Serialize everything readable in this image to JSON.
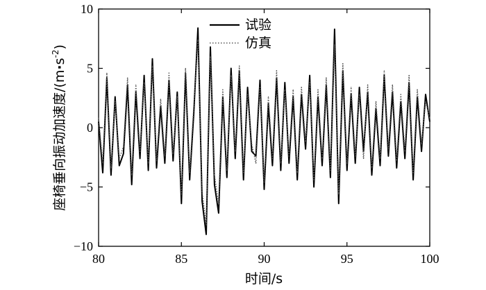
{
  "chart_data": {
    "type": "line",
    "xlabel": "时间/s",
    "ylabel_main": "座椅垂向振动加速度/(m",
    "ylabel_dot": "·",
    "ylabel_s": "s",
    "ylabel_exp": "-2",
    "ylabel_close": ")",
    "xlim": [
      80,
      100
    ],
    "ylim": [
      -10,
      10
    ],
    "xticks": [
      "80",
      "85",
      "90",
      "95",
      "100"
    ],
    "yticks": [
      "10",
      "5",
      "0",
      "-5",
      "-10"
    ],
    "grid": false,
    "legend_position": "top-center",
    "x": [
      80.0,
      80.25,
      80.5,
      80.75,
      81.0,
      81.25,
      81.5,
      81.75,
      82.0,
      82.25,
      82.5,
      82.75,
      83.0,
      83.25,
      83.5,
      83.75,
      84.0,
      84.25,
      84.5,
      84.75,
      85.0,
      85.25,
      85.5,
      85.75,
      86.0,
      86.25,
      86.5,
      86.75,
      87.0,
      87.25,
      87.5,
      87.75,
      88.0,
      88.25,
      88.5,
      88.75,
      89.0,
      89.25,
      89.5,
      89.75,
      90.0,
      90.25,
      90.5,
      90.75,
      91.0,
      91.25,
      91.5,
      91.75,
      92.0,
      92.25,
      92.5,
      92.75,
      93.0,
      93.25,
      93.5,
      93.75,
      94.0,
      94.25,
      94.5,
      94.75,
      95.0,
      95.25,
      95.5,
      95.75,
      96.0,
      96.25,
      96.5,
      96.75,
      97.0,
      97.25,
      97.5,
      97.75,
      98.0,
      98.25,
      98.5,
      98.75,
      99.0,
      99.25,
      99.5,
      99.75,
      100.0
    ],
    "series": [
      {
        "name": "试验",
        "style": "solid",
        "color": "#000000",
        "values": [
          0.5,
          -3.8,
          4.2,
          -4.0,
          2.6,
          -3.2,
          -2.2,
          3.6,
          -4.8,
          3.0,
          -2.6,
          4.4,
          -3.6,
          5.8,
          -3.4,
          1.8,
          -3.0,
          4.0,
          -2.8,
          3.0,
          -6.4,
          4.6,
          -4.4,
          1.2,
          8.4,
          -6.2,
          -9.0,
          6.8,
          -4.8,
          -7.2,
          2.6,
          -4.2,
          5.0,
          -2.6,
          4.8,
          -4.4,
          3.4,
          -2.0,
          -2.4,
          4.0,
          -5.2,
          2.0,
          -3.2,
          4.2,
          -3.6,
          3.8,
          -3.0,
          2.6,
          -4.4,
          2.8,
          -1.8,
          4.4,
          -5.0,
          2.6,
          -3.2,
          3.6,
          -4.2,
          8.3,
          -6.4,
          4.8,
          -3.6,
          2.8,
          -3.0,
          3.4,
          -2.0,
          3.0,
          -4.0,
          1.6,
          -3.2,
          4.4,
          -2.4,
          3.0,
          -3.4,
          2.2,
          -2.6,
          3.8,
          -4.4,
          2.6,
          -2.0,
          2.8,
          0.5
        ]
      },
      {
        "name": "仿真",
        "style": "dotted",
        "color": "#555555",
        "values": [
          0.8,
          -3.0,
          4.6,
          -3.4,
          2.2,
          -2.6,
          -1.6,
          4.2,
          -4.0,
          3.6,
          -2.0,
          3.8,
          -3.0,
          5.2,
          -2.8,
          2.4,
          -2.4,
          4.6,
          -2.2,
          2.6,
          -5.6,
          5.0,
          -3.8,
          1.8,
          7.4,
          -5.4,
          -8.2,
          6.0,
          -4.0,
          -6.4,
          3.2,
          -3.6,
          4.4,
          -2.0,
          5.2,
          -3.8,
          2.8,
          -1.4,
          -3.0,
          3.4,
          -4.6,
          2.6,
          -2.6,
          4.8,
          -3.0,
          3.2,
          -2.4,
          3.2,
          -3.8,
          3.4,
          -1.2,
          3.8,
          -4.4,
          3.2,
          -2.6,
          4.2,
          -3.6,
          7.0,
          -5.6,
          5.4,
          -3.0,
          3.4,
          -2.4,
          2.8,
          -2.6,
          3.6,
          -3.4,
          2.2,
          -2.6,
          4.8,
          -1.8,
          3.6,
          -2.8,
          2.8,
          -2.0,
          4.4,
          -3.8,
          3.2,
          -1.4,
          2.2,
          0.8
        ]
      }
    ]
  }
}
